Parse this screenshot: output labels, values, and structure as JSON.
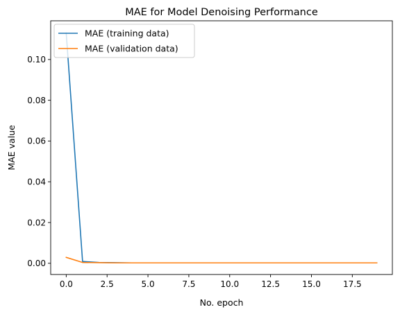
{
  "chart_data": {
    "type": "line",
    "title": "MAE for Model Denoising Performance",
    "xlabel": "No. epoch",
    "ylabel": "MAE value",
    "xlim": [
      -0.95,
      19.95
    ],
    "ylim": [
      -0.0055,
      0.119
    ],
    "x_ticks": [
      0.0,
      2.5,
      5.0,
      7.5,
      10.0,
      12.5,
      15.0,
      17.5
    ],
    "x_tick_labels": [
      "0.0",
      "2.5",
      "5.0",
      "7.5",
      "10.0",
      "12.5",
      "15.0",
      "17.5"
    ],
    "y_ticks": [
      0.0,
      0.02,
      0.04,
      0.06,
      0.08,
      0.1
    ],
    "y_tick_labels": [
      "0.00",
      "0.02",
      "0.04",
      "0.06",
      "0.08",
      "0.10"
    ],
    "grid": false,
    "legend_position": "top-left",
    "x": [
      0,
      1,
      2,
      3,
      4,
      5,
      6,
      7,
      8,
      9,
      10,
      11,
      12,
      13,
      14,
      15,
      16,
      17,
      18,
      19
    ],
    "series": [
      {
        "name": "MAE (training data)",
        "color": "#1f77b4",
        "values": [
          0.113,
          0.0009,
          0.0004,
          0.0003,
          0.0002,
          0.0002,
          0.0002,
          0.0002,
          0.0002,
          0.0002,
          0.0002,
          0.0002,
          0.0002,
          0.0002,
          0.0002,
          0.0002,
          0.0002,
          0.0002,
          0.0002,
          0.0002
        ]
      },
      {
        "name": "MAE (validation data)",
        "color": "#ff7f0e",
        "values": [
          0.0029,
          0.0004,
          0.0003,
          0.0002,
          0.0002,
          0.0002,
          0.0002,
          0.0002,
          0.0002,
          0.0002,
          0.0002,
          0.0002,
          0.0002,
          0.0002,
          0.0002,
          0.0002,
          0.0002,
          0.0002,
          0.0002,
          0.0002
        ]
      }
    ]
  }
}
